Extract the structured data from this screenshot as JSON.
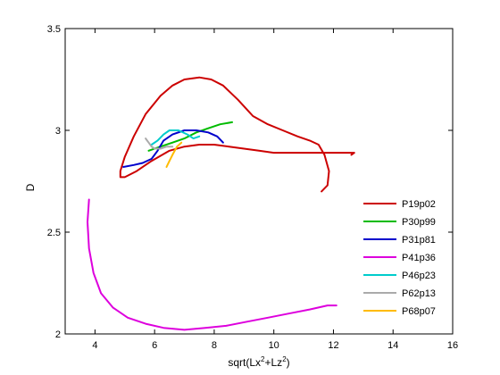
{
  "chart_data": {
    "type": "line",
    "xlabel_base": "sqrt(Lx",
    "xlabel_sup1": "2",
    "xlabel_mid": "+Lz",
    "xlabel_sup2": "2",
    "xlabel_end": ")",
    "ylabel": "D",
    "xlim": [
      3,
      16
    ],
    "ylim": [
      2,
      3.5
    ],
    "xticks": [
      "4",
      "6",
      "8",
      "10",
      "12",
      "14",
      "16"
    ],
    "yticks": [
      "2",
      "2.5",
      "3",
      "3.5"
    ],
    "grid": false,
    "legend_position": "bottom-right",
    "series": [
      {
        "name": "P19p02",
        "color": "#cc0000",
        "x": [
          11.6,
          11.8,
          11.85,
          11.7,
          11.5,
          11.2,
          10.8,
          10.3,
          9.8,
          9.3,
          8.8,
          8.3,
          7.9,
          7.5,
          7.0,
          6.6,
          6.2,
          5.7,
          5.3,
          5.0,
          4.85,
          4.85,
          5.0,
          5.4,
          5.9,
          6.5,
          7.0,
          7.5,
          8.0,
          8.5,
          9.0,
          9.5,
          10.0,
          10.5,
          11.0,
          11.5,
          12.0,
          12.4,
          12.7,
          12.6
        ],
        "y": [
          2.7,
          2.73,
          2.8,
          2.88,
          2.93,
          2.95,
          2.97,
          3.0,
          3.03,
          3.07,
          3.15,
          3.22,
          3.25,
          3.26,
          3.25,
          3.22,
          3.17,
          3.08,
          2.97,
          2.87,
          2.8,
          2.77,
          2.77,
          2.8,
          2.85,
          2.9,
          2.92,
          2.93,
          2.93,
          2.92,
          2.91,
          2.9,
          2.89,
          2.89,
          2.89,
          2.89,
          2.89,
          2.89,
          2.89,
          2.88
        ]
      },
      {
        "name": "P30p99",
        "color": "#00bb00",
        "x": [
          5.8,
          6.2,
          6.6,
          7.0,
          7.4,
          7.8,
          8.2,
          8.6
        ],
        "y": [
          2.9,
          2.92,
          2.94,
          2.96,
          2.99,
          3.01,
          3.03,
          3.04
        ]
      },
      {
        "name": "P31p81",
        "color": "#0000cc",
        "x": [
          4.95,
          5.3,
          5.6,
          5.9,
          6.1,
          6.3,
          6.6,
          7.0,
          7.4,
          7.8,
          8.1,
          8.3
        ],
        "y": [
          2.82,
          2.83,
          2.84,
          2.86,
          2.9,
          2.95,
          2.98,
          3.0,
          3.0,
          2.99,
          2.97,
          2.94
        ]
      },
      {
        "name": "P41p36",
        "color": "#dd00dd",
        "x": [
          3.8,
          3.75,
          3.8,
          3.95,
          4.2,
          4.6,
          5.1,
          5.7,
          6.3,
          7.0,
          7.7,
          8.4,
          9.1,
          9.8,
          10.5,
          11.2,
          11.8,
          12.1
        ],
        "y": [
          2.66,
          2.55,
          2.42,
          2.3,
          2.2,
          2.13,
          2.08,
          2.05,
          2.03,
          2.02,
          2.03,
          2.04,
          2.06,
          2.08,
          2.1,
          2.12,
          2.14,
          2.14
        ]
      },
      {
        "name": "P46p23",
        "color": "#00cccc",
        "x": [
          5.9,
          6.1,
          6.3,
          6.5,
          6.8,
          7.1,
          7.3,
          7.5
        ],
        "y": [
          2.93,
          2.95,
          2.98,
          3.0,
          3.0,
          2.98,
          2.96,
          2.97
        ]
      },
      {
        "name": "P62p13",
        "color": "#aaaaaa",
        "x": [
          5.7,
          5.8,
          5.9,
          6.0,
          6.2,
          6.4,
          6.6
        ],
        "y": [
          2.96,
          2.94,
          2.92,
          2.91,
          2.91,
          2.92,
          2.92
        ]
      },
      {
        "name": "P68p07",
        "color": "#ffbb00",
        "x": [
          6.4,
          6.5,
          6.6,
          6.75,
          6.9
        ],
        "y": [
          2.82,
          2.85,
          2.88,
          2.92,
          2.94
        ]
      }
    ]
  }
}
